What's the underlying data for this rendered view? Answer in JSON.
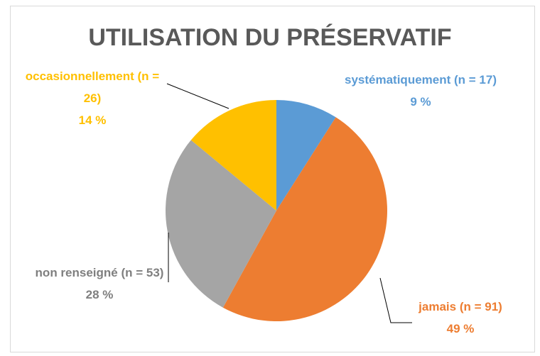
{
  "chart_data": {
    "type": "pie",
    "title": "UTILISATION DU PRÉSERVATIF",
    "categories": [
      "systématiquement (n = 17)",
      "jamais (n = 91)",
      "non renseigné (n = 53)",
      "occasionnellement (n = 26)"
    ],
    "values": [
      9,
      49,
      28,
      14
    ],
    "value_labels": [
      "9 %",
      "49 %",
      "28 %",
      "14 %"
    ],
    "colors": [
      "#5b9bd5",
      "#ed7d31",
      "#a5a5a5",
      "#ffc000"
    ]
  }
}
